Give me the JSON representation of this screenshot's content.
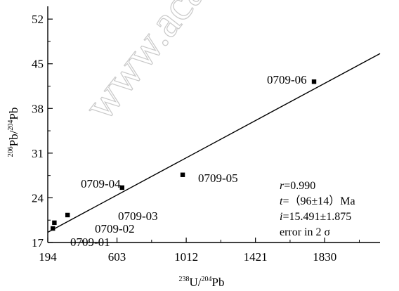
{
  "watermark": "www.acadz.ac",
  "chart_data": {
    "type": "scatter",
    "title": "",
    "xlabel": {
      "sup1": "238",
      "base1": "U/",
      "sup2": "204",
      "base2": "Pb"
    },
    "ylabel": {
      "sup1": "206",
      "base1": "Pb/",
      "sup2": "204",
      "base2": "Pb"
    },
    "xlim": [
      194,
      2157
    ],
    "ylim": [
      17,
      54
    ],
    "xticks": [
      194,
      603,
      1012,
      1421,
      1830
    ],
    "yticks": [
      17,
      24,
      31,
      38,
      45,
      52
    ],
    "points": [
      {
        "label": "0709-01",
        "x": 224,
        "y": 19.2
      },
      {
        "label": "0709-02",
        "x": 233,
        "y": 20.1
      },
      {
        "label": "0709-03",
        "x": 311,
        "y": 21.3
      },
      {
        "label": "0709-04",
        "x": 633,
        "y": 25.6
      },
      {
        "label": "0709-05",
        "x": 991,
        "y": 27.6
      },
      {
        "label": "0709-06",
        "x": 1767,
        "y": 42.2
      }
    ],
    "fit_line": {
      "x": [
        194,
        2157
      ],
      "y": [
        18.6,
        46.6
      ]
    },
    "annotations": {
      "r_name": "r",
      "r_value": "=0.990",
      "t_name": "t",
      "t_value": "=（96±14）Ma",
      "i_name": "i",
      "i_value": "=15.491±1.875",
      "error": "error in 2 σ"
    },
    "grid": false,
    "legend": "none"
  }
}
